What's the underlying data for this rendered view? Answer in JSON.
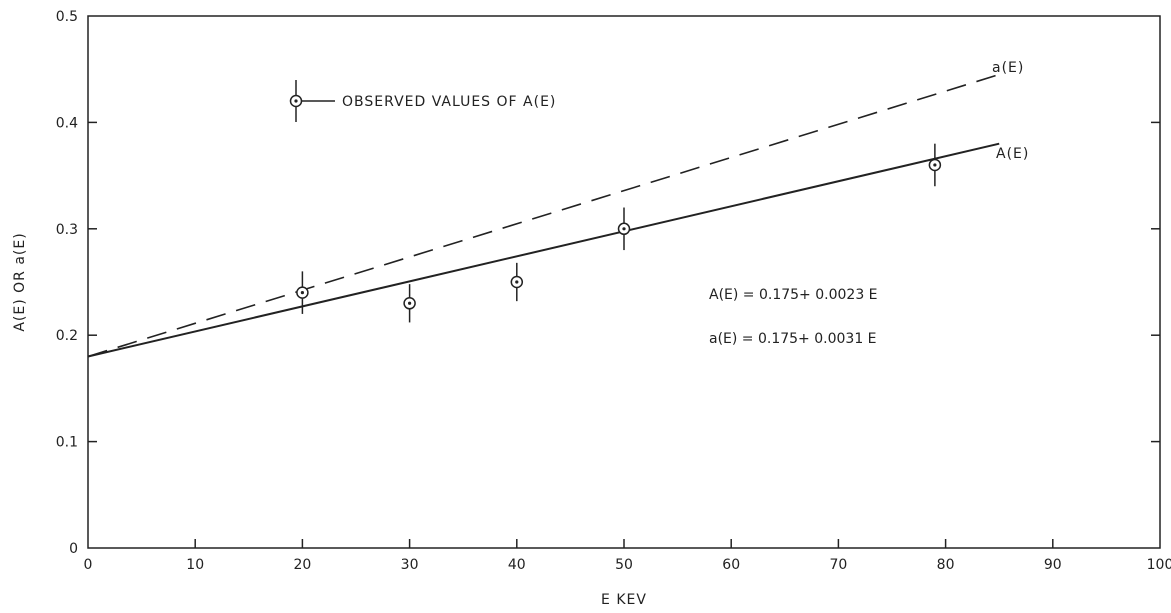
{
  "chart_data": {
    "type": "scatter",
    "xlabel": "E KEV",
    "ylabel": "A(E) OR a(E)",
    "xlim": [
      0,
      100
    ],
    "ylim": [
      0,
      0.5
    ],
    "xticks": [
      "0",
      "10",
      "20",
      "30",
      "40",
      "50",
      "60",
      "70",
      "80",
      "90",
      "100"
    ],
    "yticks": [
      "0",
      "0.1",
      "0.2",
      "0.3",
      "0.4",
      "0.5"
    ],
    "grid": false,
    "legend_text": "OBSERVED VALUES OF A(E)",
    "points": [
      {
        "x": 20,
        "y": 0.24,
        "err": 0.02
      },
      {
        "x": 30,
        "y": 0.23,
        "err": 0.018
      },
      {
        "x": 40,
        "y": 0.25,
        "err": 0.018
      },
      {
        "x": 50,
        "y": 0.3,
        "err": 0.02
      },
      {
        "x": 79,
        "y": 0.36,
        "err": 0.02
      }
    ],
    "lines": [
      {
        "name": "A(E)",
        "style": "solid",
        "x": [
          0,
          85
        ],
        "y": [
          0.18,
          0.38
        ]
      },
      {
        "name": "a(E)",
        "style": "dashed",
        "x": [
          0,
          85
        ],
        "y": [
          0.18,
          0.445
        ]
      }
    ],
    "equations": [
      "A(E) = 0.175+ 0.0023 E",
      "a(E) = 0.175+ 0.0031 E"
    ]
  }
}
